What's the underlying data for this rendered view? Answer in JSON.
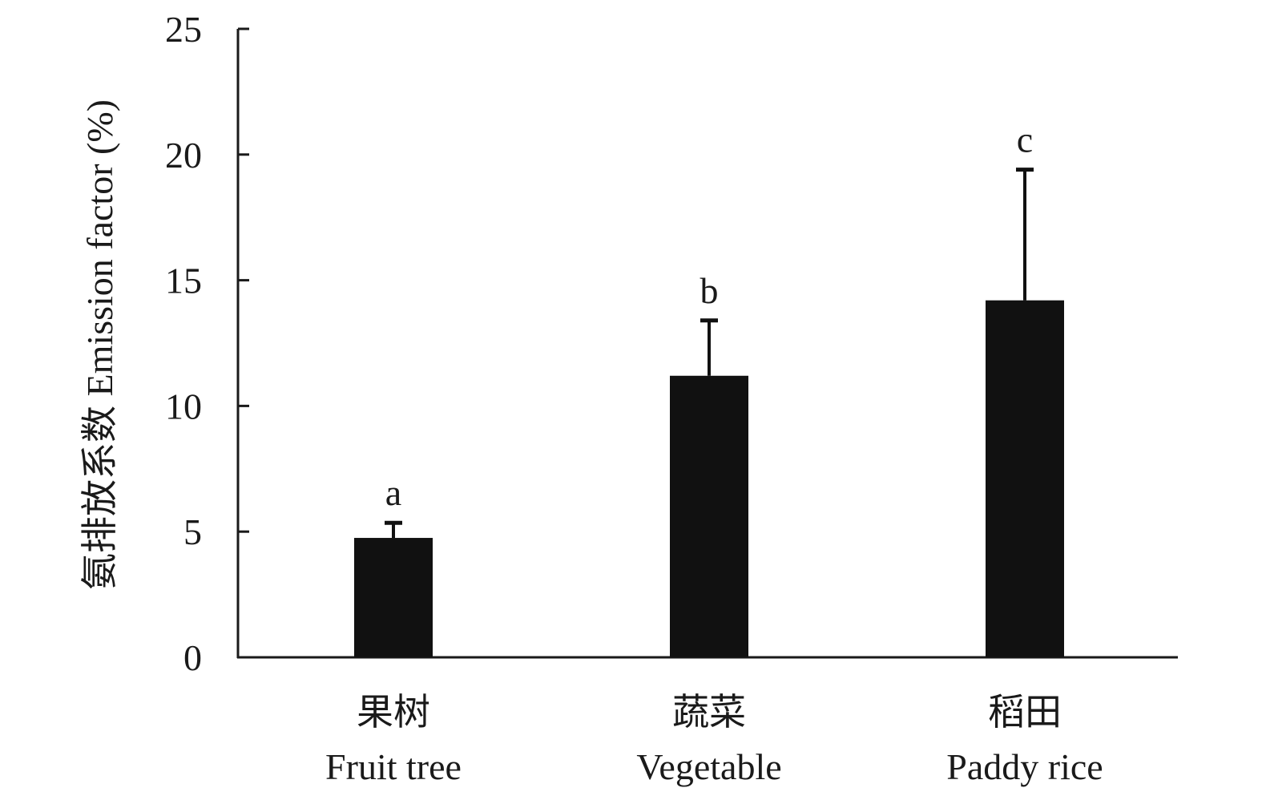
{
  "chart_data": {
    "type": "bar",
    "title": "",
    "categories": [
      {
        "zh": "果树",
        "en": "Fruit tree"
      },
      {
        "zh": "蔬菜",
        "en": "Vegetable"
      },
      {
        "zh": "稻田",
        "en": "Paddy rice"
      }
    ],
    "values": [
      4.75,
      11.2,
      14.2
    ],
    "error_upper": [
      5.35,
      13.4,
      19.4
    ],
    "significance": [
      "a",
      "b",
      "c"
    ],
    "ylabel": "氨排放系数 Emission factor (%)",
    "xlabel": "",
    "ylim": [
      0,
      25
    ],
    "yticks": [
      "0",
      "5",
      "10",
      "15",
      "20",
      "25"
    ],
    "bar_color": "#111111",
    "grid": false,
    "legend": "none"
  }
}
